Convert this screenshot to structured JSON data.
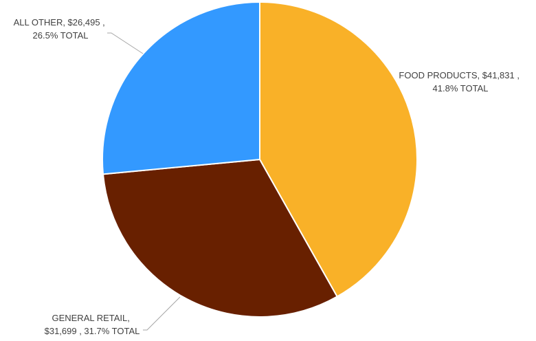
{
  "chart_data": {
    "type": "pie",
    "title": "",
    "start_angle_deg": 0,
    "direction": "clockwise",
    "slices": [
      {
        "label": "FOOD PRODUCTS",
        "value": 41831,
        "value_text": "$41,831",
        "percent_text": "41.8% TOTAL",
        "color": "#F9B128"
      },
      {
        "label": "GENERAL RETAIL",
        "value": 31699,
        "value_text": "$31,699",
        "percent_text": "31.7% TOTAL",
        "color": "#682000"
      },
      {
        "label": "ALL OTHER",
        "value": 26495,
        "value_text": "$26,495",
        "percent_text": "26.5% TOTAL",
        "color": "#3399FF"
      }
    ],
    "label_lines": [
      {
        "line1": "FOOD PRODUCTS, $41,831 ,",
        "line2": "41.8% TOTAL"
      },
      {
        "line1": "GENERAL RETAIL,",
        "line2": "$31,699 , 31.7% TOTAL"
      },
      {
        "line1": "ALL OTHER, $26,495 ,",
        "line2": "26.5% TOTAL"
      }
    ]
  }
}
